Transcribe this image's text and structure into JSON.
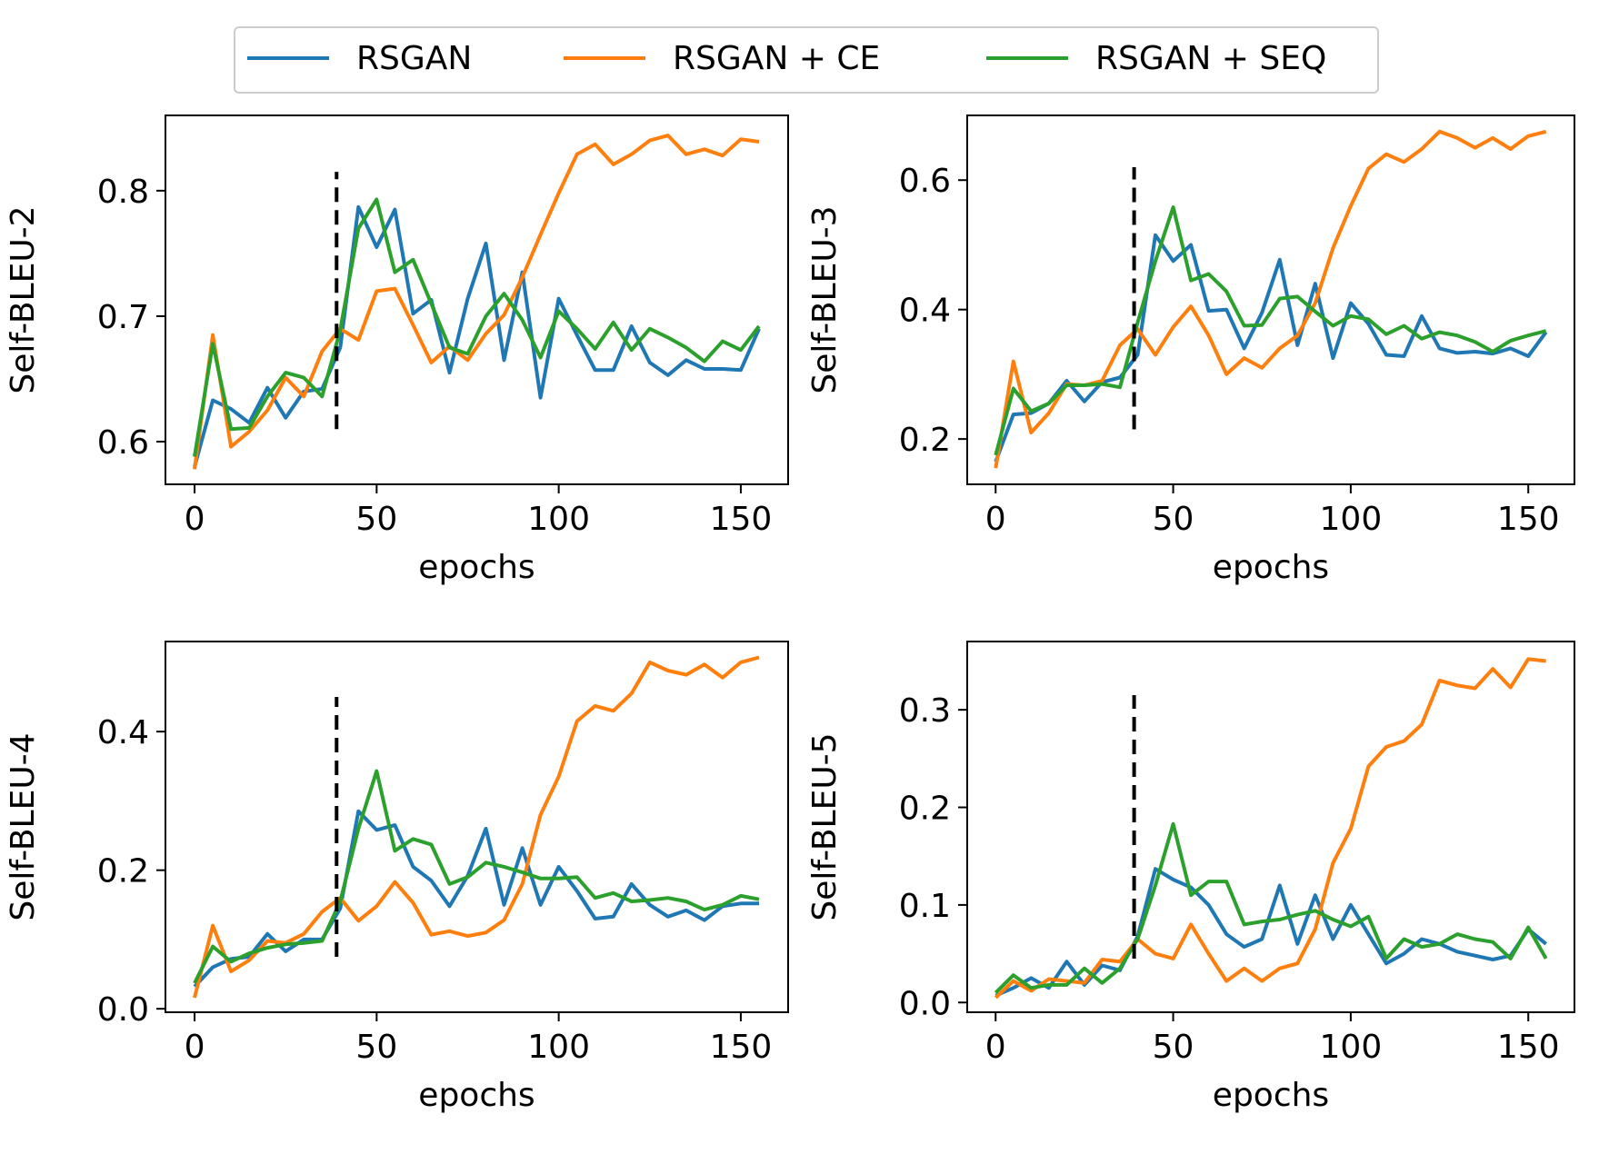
{
  "legend": {
    "placement": "top-center",
    "entries": [
      {
        "label": "RSGAN",
        "color": "#1f77b4"
      },
      {
        "label": "RSGAN + CE",
        "color": "#ff7f0e"
      },
      {
        "label": "RSGAN + SEQ",
        "color": "#2ca02c"
      }
    ]
  },
  "chart_data": [
    {
      "type": "line",
      "xlabel": "epochs",
      "ylabel": "Self-BLEU-2",
      "xlim": [
        -8,
        163
      ],
      "ylim": [
        0.566,
        0.86
      ],
      "xticks": [
        0,
        50,
        100,
        150
      ],
      "yticks": [
        0.6,
        0.7,
        0.8
      ],
      "ytick_labels": [
        "0.6",
        "0.7",
        "0.8"
      ],
      "grid": false,
      "vline": {
        "x": 39,
        "ymin": 0.61,
        "ymax": 0.815,
        "style": "dashed",
        "color": "#000000"
      },
      "x": [
        0,
        5,
        10,
        15,
        20,
        25,
        30,
        35,
        40,
        45,
        50,
        55,
        60,
        65,
        70,
        75,
        80,
        85,
        90,
        95,
        100,
        105,
        110,
        115,
        120,
        125,
        130,
        135,
        140,
        145,
        150,
        155
      ],
      "series": [
        {
          "name": "RSGAN",
          "color": "#1f77b4",
          "values": [
            0.58,
            0.633,
            0.626,
            0.615,
            0.643,
            0.619,
            0.64,
            0.642,
            0.675,
            0.787,
            0.755,
            0.785,
            0.702,
            0.713,
            0.655,
            0.714,
            0.758,
            0.665,
            0.735,
            0.635,
            0.714,
            0.685,
            0.657,
            0.657,
            0.692,
            0.663,
            0.653,
            0.665,
            0.658,
            0.658,
            0.657,
            0.69
          ]
        },
        {
          "name": "RSGAN + CE",
          "color": "#ff7f0e",
          "values": [
            0.578,
            0.685,
            0.596,
            0.608,
            0.625,
            0.651,
            0.636,
            0.672,
            0.69,
            0.681,
            0.72,
            0.722,
            0.693,
            0.663,
            0.676,
            0.665,
            0.686,
            0.701,
            0.731,
            0.765,
            0.798,
            0.829,
            0.837,
            0.821,
            0.829,
            0.84,
            0.844,
            0.829,
            0.833,
            0.828,
            0.841,
            0.839
          ]
        },
        {
          "name": "RSGAN + SEQ",
          "color": "#2ca02c",
          "values": [
            0.588,
            0.678,
            0.61,
            0.611,
            0.636,
            0.655,
            0.651,
            0.636,
            0.689,
            0.77,
            0.793,
            0.735,
            0.745,
            0.71,
            0.675,
            0.67,
            0.7,
            0.718,
            0.697,
            0.667,
            0.704,
            0.69,
            0.674,
            0.695,
            0.673,
            0.69,
            0.683,
            0.675,
            0.664,
            0.68,
            0.673,
            0.692
          ]
        }
      ]
    },
    {
      "type": "line",
      "xlabel": "epochs",
      "ylabel": "Self-BLEU-3",
      "xlim": [
        -8,
        163
      ],
      "ylim": [
        0.13,
        0.7
      ],
      "xticks": [
        0,
        50,
        100,
        150
      ],
      "yticks": [
        0.2,
        0.4,
        0.6
      ],
      "ytick_labels": [
        "0.2",
        "0.4",
        "0.6"
      ],
      "grid": false,
      "vline": {
        "x": 39,
        "ymin": 0.215,
        "ymax": 0.62,
        "style": "dashed",
        "color": "#000000"
      },
      "x": [
        0,
        5,
        10,
        15,
        20,
        25,
        30,
        35,
        40,
        45,
        50,
        55,
        60,
        65,
        70,
        75,
        80,
        85,
        90,
        95,
        100,
        105,
        110,
        115,
        120,
        125,
        130,
        135,
        140,
        145,
        150,
        155
      ],
      "series": [
        {
          "name": "RSGAN",
          "color": "#1f77b4",
          "values": [
            0.165,
            0.238,
            0.24,
            0.255,
            0.29,
            0.258,
            0.288,
            0.295,
            0.33,
            0.515,
            0.475,
            0.5,
            0.398,
            0.4,
            0.34,
            0.395,
            0.477,
            0.345,
            0.44,
            0.325,
            0.41,
            0.378,
            0.33,
            0.328,
            0.39,
            0.34,
            0.333,
            0.335,
            0.332,
            0.34,
            0.328,
            0.365
          ]
        },
        {
          "name": "RSGAN + CE",
          "color": "#ff7f0e",
          "values": [
            0.155,
            0.32,
            0.21,
            0.24,
            0.285,
            0.283,
            0.29,
            0.345,
            0.37,
            0.33,
            0.373,
            0.405,
            0.36,
            0.3,
            0.325,
            0.31,
            0.34,
            0.36,
            0.41,
            0.495,
            0.56,
            0.618,
            0.64,
            0.628,
            0.648,
            0.675,
            0.665,
            0.65,
            0.665,
            0.648,
            0.668,
            0.675
          ]
        },
        {
          "name": "RSGAN + SEQ",
          "color": "#2ca02c",
          "values": [
            0.175,
            0.278,
            0.243,
            0.255,
            0.283,
            0.283,
            0.285,
            0.28,
            0.38,
            0.475,
            0.558,
            0.445,
            0.455,
            0.428,
            0.375,
            0.376,
            0.417,
            0.42,
            0.397,
            0.375,
            0.39,
            0.385,
            0.362,
            0.375,
            0.355,
            0.365,
            0.36,
            0.35,
            0.335,
            0.352,
            0.36,
            0.367
          ]
        }
      ]
    },
    {
      "type": "line",
      "xlabel": "epochs",
      "ylabel": "Self-BLEU-4",
      "xlim": [
        -8,
        163
      ],
      "ylim": [
        -0.005,
        0.53
      ],
      "xticks": [
        0,
        50,
        100,
        150
      ],
      "yticks": [
        0.0,
        0.2,
        0.4
      ],
      "ytick_labels": [
        "0.0",
        "0.2",
        "0.4"
      ],
      "grid": false,
      "vline": {
        "x": 39,
        "ymin": 0.075,
        "ymax": 0.45,
        "style": "dashed",
        "color": "#000000"
      },
      "x": [
        0,
        5,
        10,
        15,
        20,
        25,
        30,
        35,
        40,
        45,
        50,
        55,
        60,
        65,
        70,
        75,
        80,
        85,
        90,
        95,
        100,
        105,
        110,
        115,
        120,
        125,
        130,
        135,
        140,
        145,
        150,
        155
      ],
      "series": [
        {
          "name": "RSGAN",
          "color": "#1f77b4",
          "values": [
            0.032,
            0.06,
            0.072,
            0.075,
            0.108,
            0.083,
            0.1,
            0.1,
            0.145,
            0.285,
            0.258,
            0.265,
            0.205,
            0.185,
            0.148,
            0.192,
            0.26,
            0.15,
            0.232,
            0.15,
            0.205,
            0.17,
            0.13,
            0.133,
            0.18,
            0.15,
            0.133,
            0.142,
            0.128,
            0.148,
            0.152,
            0.152
          ]
        },
        {
          "name": "RSGAN + CE",
          "color": "#ff7f0e",
          "values": [
            0.016,
            0.12,
            0.054,
            0.07,
            0.098,
            0.095,
            0.108,
            0.14,
            0.16,
            0.127,
            0.148,
            0.183,
            0.153,
            0.107,
            0.112,
            0.105,
            0.11,
            0.128,
            0.18,
            0.28,
            0.335,
            0.415,
            0.437,
            0.43,
            0.455,
            0.5,
            0.488,
            0.482,
            0.497,
            0.478,
            0.5,
            0.507
          ]
        },
        {
          "name": "RSGAN + SEQ",
          "color": "#2ca02c",
          "values": [
            0.037,
            0.09,
            0.068,
            0.08,
            0.088,
            0.093,
            0.095,
            0.098,
            0.155,
            0.26,
            0.343,
            0.228,
            0.245,
            0.237,
            0.18,
            0.19,
            0.211,
            0.205,
            0.197,
            0.188,
            0.188,
            0.19,
            0.16,
            0.167,
            0.155,
            0.157,
            0.16,
            0.155,
            0.143,
            0.15,
            0.163,
            0.158
          ]
        }
      ]
    },
    {
      "type": "line",
      "xlabel": "epochs",
      "ylabel": "Self-BLEU-5",
      "xlim": [
        -8,
        163
      ],
      "ylim": [
        -0.01,
        0.37
      ],
      "xticks": [
        0,
        50,
        100,
        150
      ],
      "yticks": [
        0.0,
        0.1,
        0.2,
        0.3
      ],
      "ytick_labels": [
        "0.0",
        "0.1",
        "0.2",
        "0.3"
      ],
      "grid": false,
      "vline": {
        "x": 39,
        "ymin": 0.045,
        "ymax": 0.315,
        "style": "dashed",
        "color": "#000000"
      },
      "x": [
        0,
        5,
        10,
        15,
        20,
        25,
        30,
        35,
        40,
        45,
        50,
        55,
        60,
        65,
        70,
        75,
        80,
        85,
        90,
        95,
        100,
        105,
        110,
        115,
        120,
        125,
        130,
        135,
        140,
        145,
        150,
        155
      ],
      "series": [
        {
          "name": "RSGAN",
          "color": "#1f77b4",
          "values": [
            0.007,
            0.015,
            0.025,
            0.015,
            0.042,
            0.018,
            0.038,
            0.033,
            0.068,
            0.137,
            0.126,
            0.118,
            0.1,
            0.07,
            0.057,
            0.065,
            0.12,
            0.06,
            0.11,
            0.065,
            0.1,
            0.07,
            0.04,
            0.05,
            0.065,
            0.06,
            0.052,
            0.048,
            0.044,
            0.048,
            0.075,
            0.06
          ]
        },
        {
          "name": "RSGAN + CE",
          "color": "#ff7f0e",
          "values": [
            0.005,
            0.022,
            0.012,
            0.024,
            0.022,
            0.02,
            0.044,
            0.042,
            0.065,
            0.05,
            0.045,
            0.08,
            0.05,
            0.022,
            0.035,
            0.022,
            0.035,
            0.04,
            0.075,
            0.143,
            0.178,
            0.242,
            0.262,
            0.268,
            0.285,
            0.33,
            0.325,
            0.322,
            0.342,
            0.323,
            0.352,
            0.35
          ]
        },
        {
          "name": "RSGAN + SEQ",
          "color": "#2ca02c",
          "values": [
            0.01,
            0.028,
            0.015,
            0.018,
            0.018,
            0.035,
            0.02,
            0.035,
            0.065,
            0.12,
            0.183,
            0.11,
            0.124,
            0.124,
            0.08,
            0.083,
            0.085,
            0.09,
            0.094,
            0.085,
            0.078,
            0.088,
            0.045,
            0.065,
            0.057,
            0.06,
            0.07,
            0.065,
            0.062,
            0.045,
            0.077,
            0.045
          ]
        }
      ]
    }
  ]
}
